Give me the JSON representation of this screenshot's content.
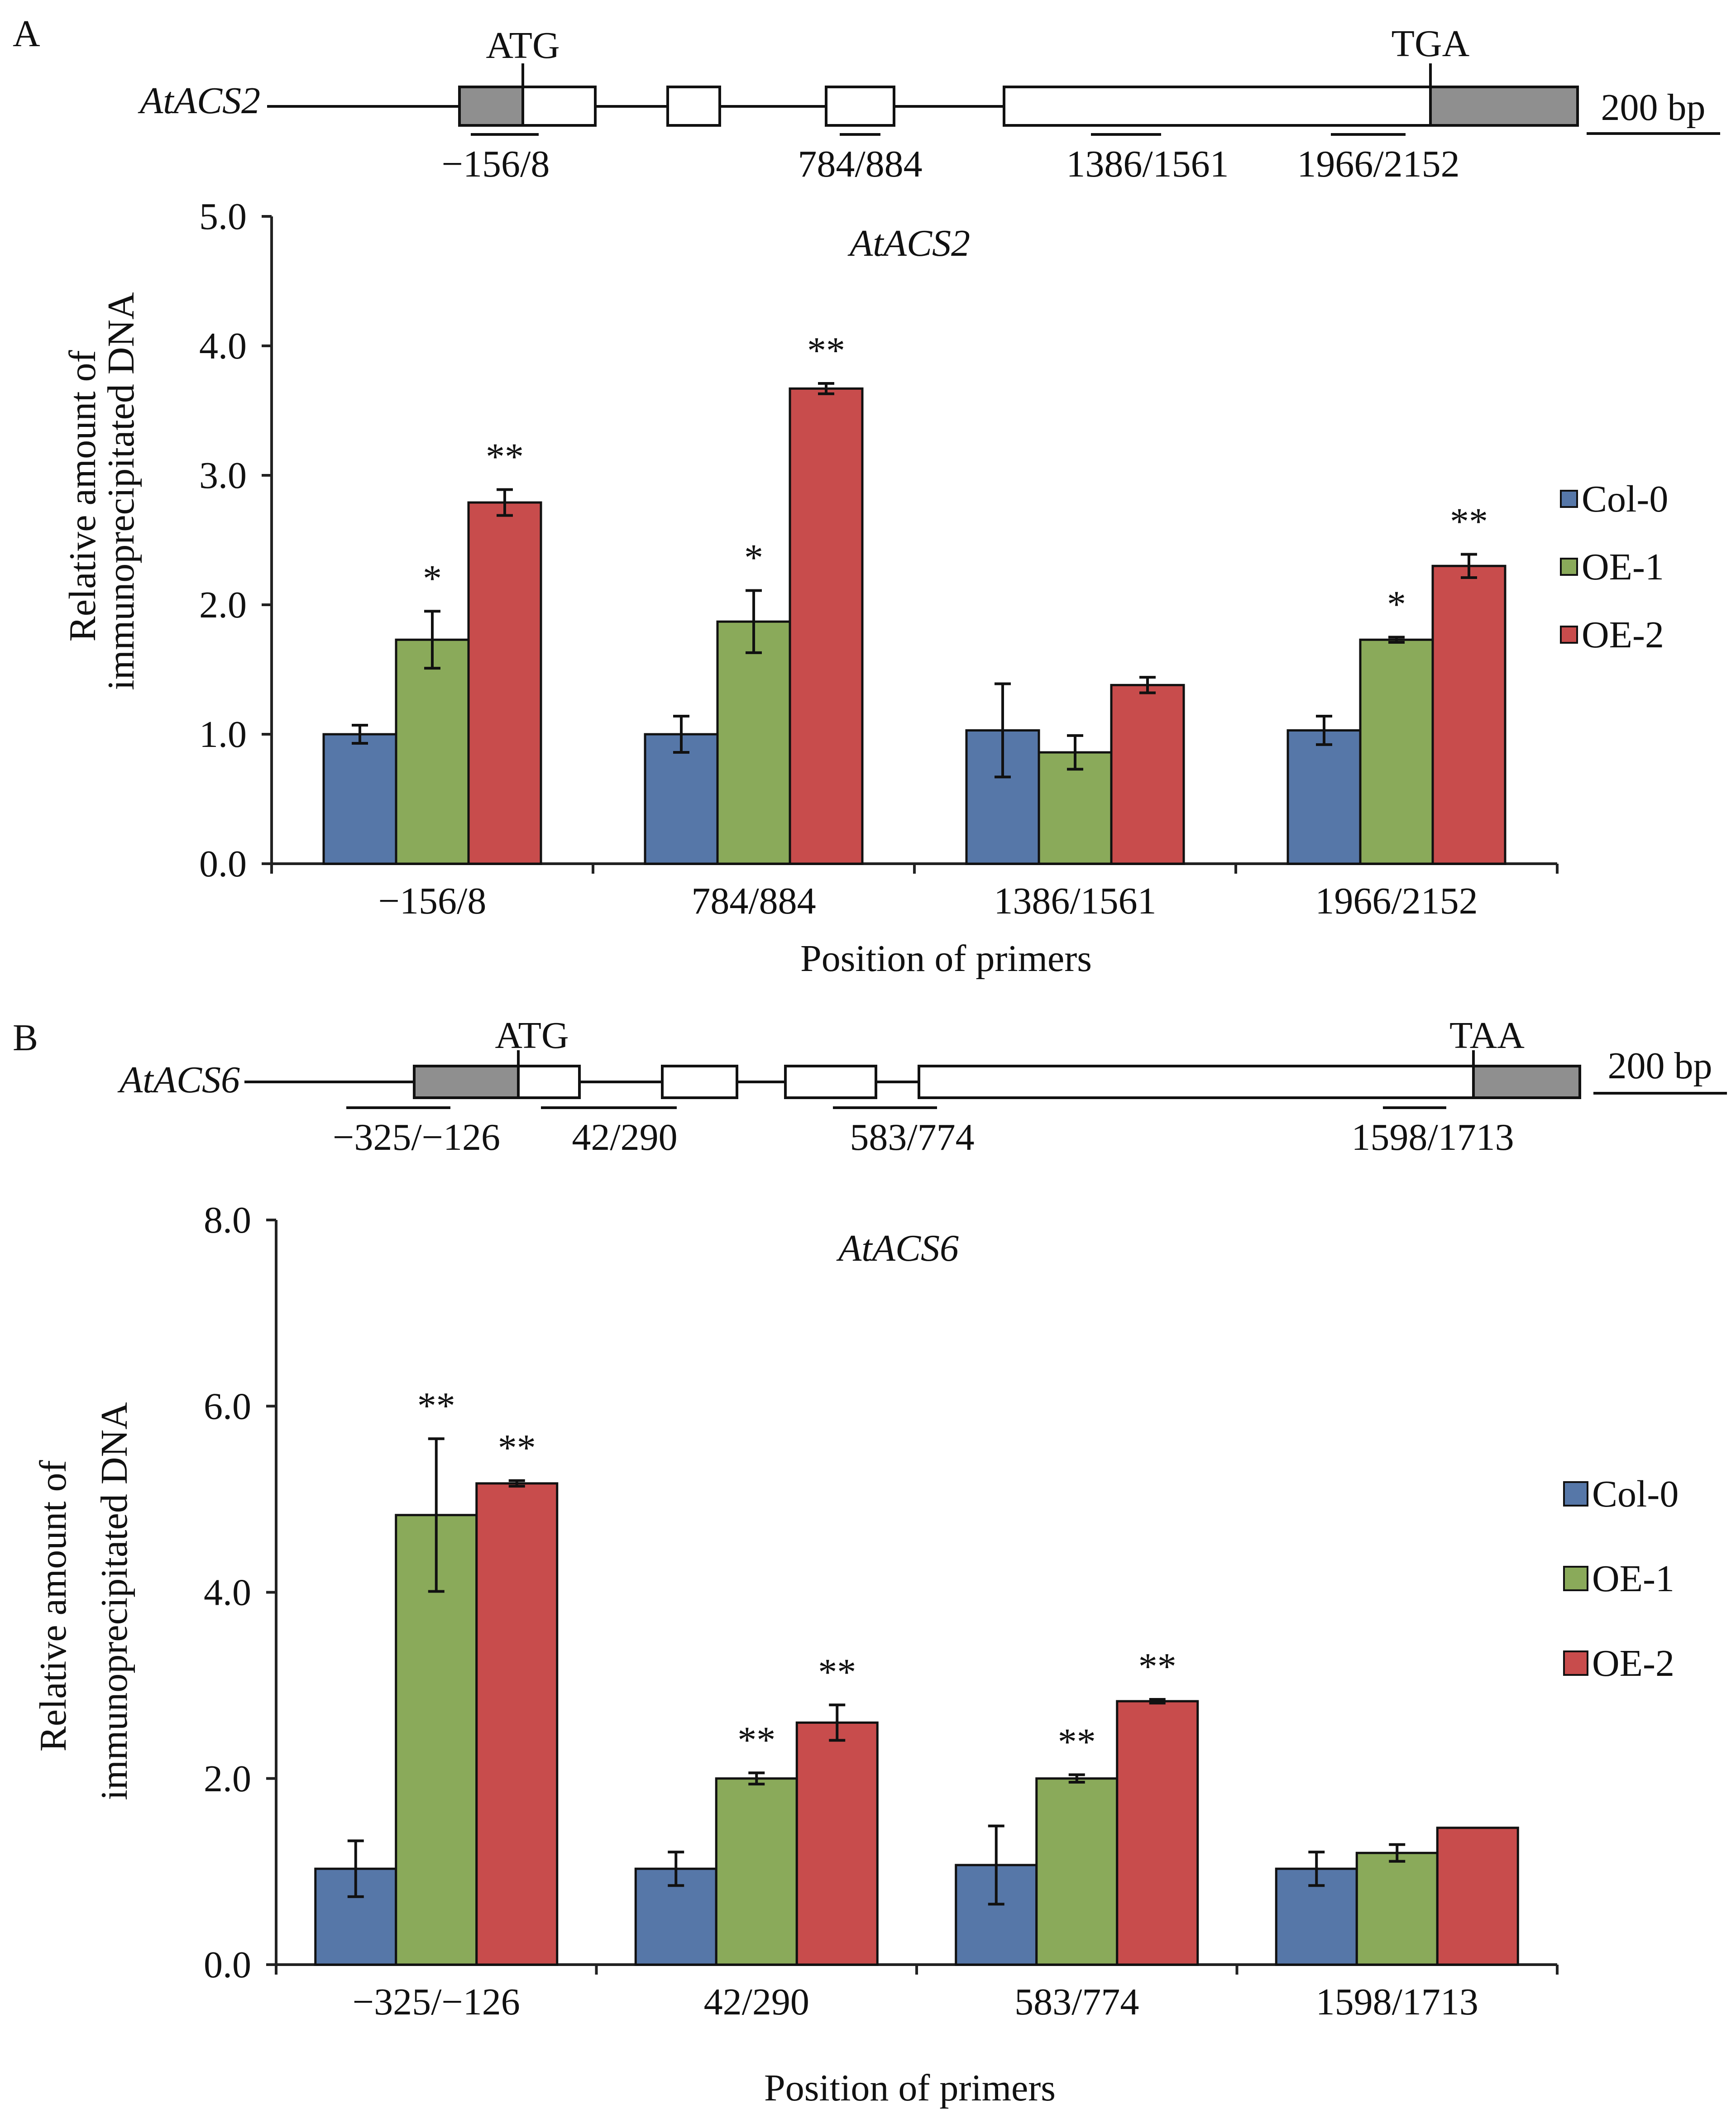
{
  "panels": [
    {
      "panel_label": "A",
      "gene_map": {
        "gene_name": "AtACS2",
        "start_codon": "ATG",
        "stop_codon": "TGA",
        "scale_label": "200 bp",
        "primer_labels": [
          "−156/8",
          "784/884",
          "1386/1561",
          "1966/2152"
        ]
      },
      "legend": [
        {
          "name": "Col-0",
          "color": "#5677a8"
        },
        {
          "name": "OE-1",
          "color": "#8aaa5a"
        },
        {
          "name": "OE-2",
          "color": "#c84c4c"
        }
      ]
    },
    {
      "panel_label": "B",
      "gene_map": {
        "gene_name": "AtACS6",
        "start_codon": "ATG",
        "stop_codon": "TAA",
        "scale_label": "200 bp",
        "primer_labels": [
          "−325/−126",
          "42/290",
          "583/774",
          "1598/1713"
        ]
      },
      "legend": [
        {
          "name": "Col-0",
          "color": "#5677a8"
        },
        {
          "name": "OE-1",
          "color": "#8aaa5a"
        },
        {
          "name": "OE-2",
          "color": "#c84c4c"
        }
      ]
    }
  ],
  "chart_data": [
    {
      "type": "bar",
      "title": "AtACS2",
      "xlabel": "Position of primers",
      "ylabel": [
        "Relative amount of",
        "immunoprecipitated DNA"
      ],
      "ylim": [
        0,
        5
      ],
      "yticks": [
        "0.0",
        "1.0",
        "2.0",
        "3.0",
        "4.0",
        "5.0"
      ],
      "grid": false,
      "legend_position": "right",
      "categories": [
        "−156/8",
        "784/884",
        "1386/1561",
        "1966/2152"
      ],
      "series": [
        {
          "name": "Col-0",
          "color": "#5677a8",
          "values": [
            1.0,
            1.0,
            1.03,
            1.03
          ],
          "errors": [
            0.07,
            0.14,
            0.36,
            0.11
          ],
          "significance": [
            "",
            "",
            "",
            ""
          ]
        },
        {
          "name": "OE-1",
          "color": "#8aaa5a",
          "values": [
            1.73,
            1.87,
            0.86,
            1.73
          ],
          "errors": [
            0.22,
            0.24,
            0.13,
            0.02
          ],
          "significance": [
            "*",
            "*",
            "",
            "*"
          ]
        },
        {
          "name": "OE-2",
          "color": "#c84c4c",
          "values": [
            2.79,
            3.67,
            1.38,
            2.3
          ],
          "errors": [
            0.1,
            0.04,
            0.06,
            0.09
          ],
          "significance": [
            "**",
            "**",
            "",
            "**"
          ]
        }
      ]
    },
    {
      "type": "bar",
      "title": "AtACS6",
      "xlabel": "Position of primers",
      "ylabel": [
        "Relative amount of",
        "immunoprecipitated DNA"
      ],
      "ylim": [
        0,
        8
      ],
      "yticks": [
        "0.0",
        "2.0",
        "4.0",
        "6.0",
        "8.0"
      ],
      "grid": false,
      "legend_position": "right",
      "categories": [
        "−325/−126",
        "42/290",
        "583/774",
        "1598/1713"
      ],
      "series": [
        {
          "name": "Col-0",
          "color": "#5677a8",
          "values": [
            1.03,
            1.03,
            1.07,
            1.03
          ],
          "errors": [
            0.3,
            0.18,
            0.42,
            0.18
          ],
          "significance": [
            "",
            "",
            "",
            ""
          ]
        },
        {
          "name": "OE-1",
          "color": "#8aaa5a",
          "values": [
            4.83,
            2.0,
            2.0,
            1.2
          ],
          "errors": [
            0.82,
            0.06,
            0.04,
            0.09
          ],
          "significance": [
            "**",
            "**",
            "**",
            ""
          ]
        },
        {
          "name": "OE-2",
          "color": "#c84c4c",
          "values": [
            5.17,
            2.6,
            2.83,
            1.47
          ],
          "errors": [
            0.03,
            0.19,
            0.02,
            0.0
          ],
          "significance": [
            "**",
            "**",
            "**",
            ""
          ]
        }
      ]
    }
  ]
}
